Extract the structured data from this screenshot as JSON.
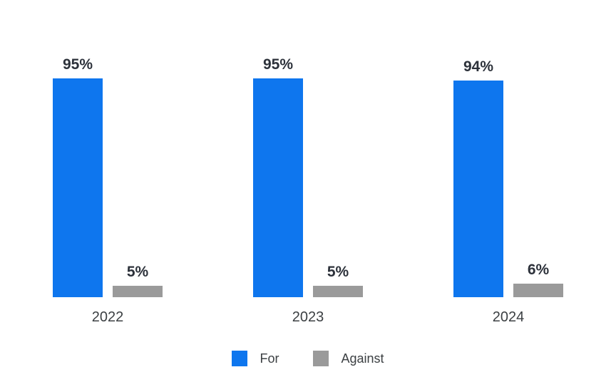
{
  "chart_data": {
    "type": "bar",
    "title": "",
    "xlabel": "",
    "ylabel": "",
    "ylim": [
      0,
      100
    ],
    "grid": false,
    "legend_position": "bottom",
    "value_suffix": "%",
    "categories": [
      "2022",
      "2023",
      "2024"
    ],
    "series": [
      {
        "name": "For",
        "color": "#0e76ee",
        "values": [
          95,
          95,
          94
        ]
      },
      {
        "name": "Against",
        "color": "#9a9a9a",
        "values": [
          5,
          5,
          6
        ]
      }
    ],
    "groups": [
      {
        "category": "2022",
        "bars": [
          {
            "series": "For",
            "value": 95,
            "label": "95%"
          },
          {
            "series": "Against",
            "value": 5,
            "label": "5%"
          }
        ]
      },
      {
        "category": "2023",
        "bars": [
          {
            "series": "For",
            "value": 95,
            "label": "95%"
          },
          {
            "series": "Against",
            "value": 5,
            "label": "5%"
          }
        ]
      },
      {
        "category": "2024",
        "bars": [
          {
            "series": "For",
            "value": 94,
            "label": "94%"
          },
          {
            "series": "Against",
            "value": 6,
            "label": "6%"
          }
        ]
      }
    ],
    "legend": {
      "items": [
        {
          "label": "For",
          "color": "#0e76ee"
        },
        {
          "label": "Against",
          "color": "#9a9a9a"
        }
      ]
    }
  },
  "colors": {
    "background": "#ffffff",
    "value_label_text": "#2c313a",
    "axis_label_text": "#3c4043",
    "for_bar": "#0e76ee",
    "against_bar": "#9a9a9a"
  }
}
